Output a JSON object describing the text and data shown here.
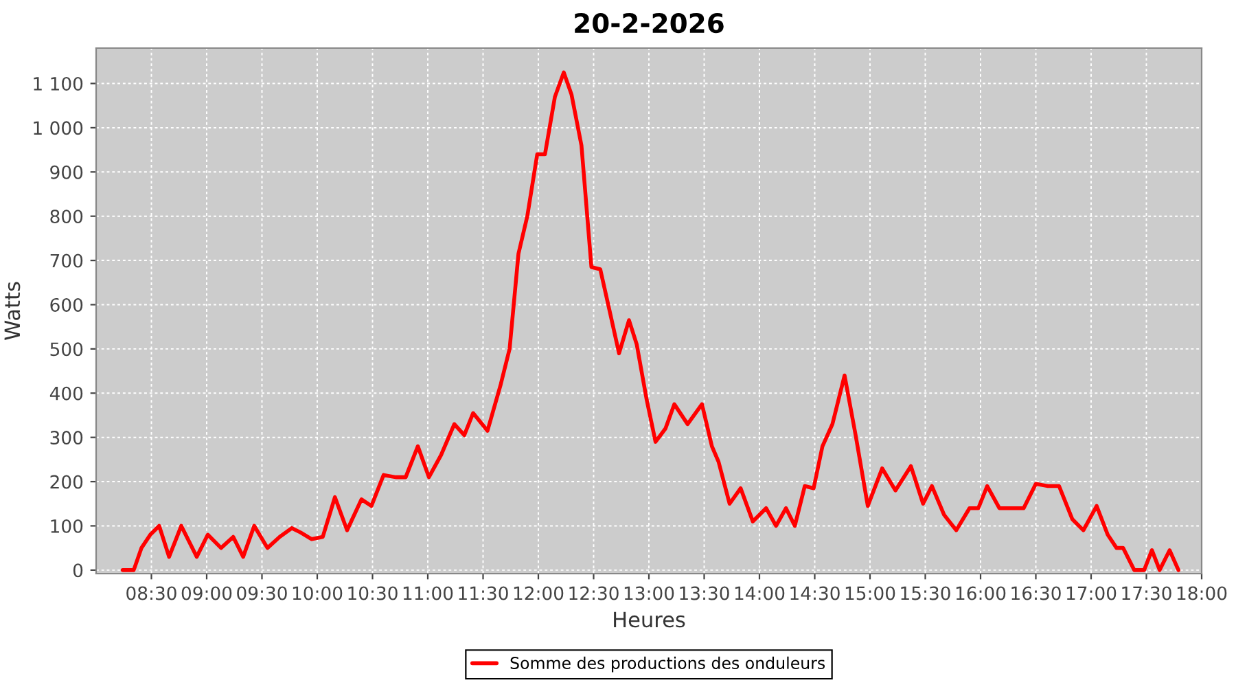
{
  "chart_data": {
    "type": "line",
    "title": "20-2-2026",
    "xlabel": "Heures",
    "ylabel": "Watts",
    "x": [
      8.24,
      8.34,
      8.41,
      8.49,
      8.57,
      8.66,
      8.77,
      8.91,
      9.01,
      9.13,
      9.24,
      9.33,
      9.43,
      9.55,
      9.66,
      9.77,
      9.85,
      9.95,
      10.05,
      10.16,
      10.27,
      10.4,
      10.49,
      10.6,
      10.71,
      10.8,
      10.91,
      11.01,
      11.12,
      11.24,
      11.33,
      11.41,
      11.54,
      11.66,
      11.74,
      11.82,
      11.9,
      11.99,
      12.06,
      12.15,
      12.23,
      12.3,
      12.39,
      12.48,
      12.56,
      12.65,
      12.73,
      12.82,
      12.89,
      12.98,
      13.06,
      13.15,
      13.23,
      13.35,
      13.48,
      13.57,
      13.63,
      13.73,
      13.83,
      13.94,
      14.06,
      14.15,
      14.24,
      14.32,
      14.41,
      14.49,
      14.57,
      14.66,
      14.77,
      14.87,
      14.98,
      15.11,
      15.23,
      15.37,
      15.48,
      15.56,
      15.67,
      15.78,
      15.9,
      15.98,
      16.06,
      16.17,
      16.3,
      16.39,
      16.5,
      16.61,
      16.71,
      16.83,
      16.93,
      17.05,
      17.15,
      17.23,
      17.29,
      17.39,
      17.48,
      17.55,
      17.62,
      17.71,
      17.79
    ],
    "series": [
      {
        "name": "Somme des productions des onduleurs",
        "color": "#ff0000",
        "values": [
          0,
          0,
          50,
          80,
          100,
          30,
          100,
          30,
          80,
          50,
          75,
          30,
          100,
          50,
          75,
          95,
          85,
          70,
          75,
          165,
          90,
          160,
          145,
          215,
          210,
          210,
          280,
          210,
          260,
          330,
          305,
          355,
          315,
          420,
          500,
          715,
          800,
          940,
          940,
          1070,
          1125,
          1075,
          960,
          685,
          680,
          580,
          490,
          565,
          510,
          385,
          290,
          320,
          375,
          330,
          375,
          280,
          245,
          150,
          185,
          110,
          140,
          100,
          140,
          100,
          190,
          185,
          280,
          330,
          440,
          305,
          145,
          230,
          180,
          235,
          150,
          190,
          125,
          90,
          140,
          140,
          190,
          140,
          140,
          140,
          195,
          190,
          190,
          115,
          90,
          145,
          80,
          50,
          50,
          0,
          0,
          45,
          0,
          45,
          0
        ]
      }
    ],
    "xlim": [
      8.0,
      18.0
    ],
    "xticks": [
      {
        "value": 8.5,
        "label": "08:30"
      },
      {
        "value": 9.0,
        "label": "09:00"
      },
      {
        "value": 9.5,
        "label": "09:30"
      },
      {
        "value": 10.0,
        "label": "10:00"
      },
      {
        "value": 10.5,
        "label": "10:30"
      },
      {
        "value": 11.0,
        "label": "11:00"
      },
      {
        "value": 11.5,
        "label": "11:30"
      },
      {
        "value": 12.0,
        "label": "12:00"
      },
      {
        "value": 12.5,
        "label": "12:30"
      },
      {
        "value": 13.0,
        "label": "13:00"
      },
      {
        "value": 13.5,
        "label": "13:30"
      },
      {
        "value": 14.0,
        "label": "14:00"
      },
      {
        "value": 14.5,
        "label": "14:30"
      },
      {
        "value": 15.0,
        "label": "15:00"
      },
      {
        "value": 15.5,
        "label": "15:30"
      },
      {
        "value": 16.0,
        "label": "16:00"
      },
      {
        "value": 16.5,
        "label": "16:30"
      },
      {
        "value": 17.0,
        "label": "17:00"
      },
      {
        "value": 17.5,
        "label": "17:30"
      },
      {
        "value": 18.0,
        "label": "18:00"
      }
    ],
    "ylim": [
      -8,
      1180
    ],
    "yticks": [
      0,
      100,
      200,
      300,
      400,
      500,
      600,
      700,
      800,
      900,
      {
        "value": 1000,
        "label": "1 000"
      },
      {
        "value": 1100,
        "label": "1 100"
      }
    ],
    "grid": true,
    "legend": "bottom",
    "marker": "none",
    "line_style": "solid"
  }
}
